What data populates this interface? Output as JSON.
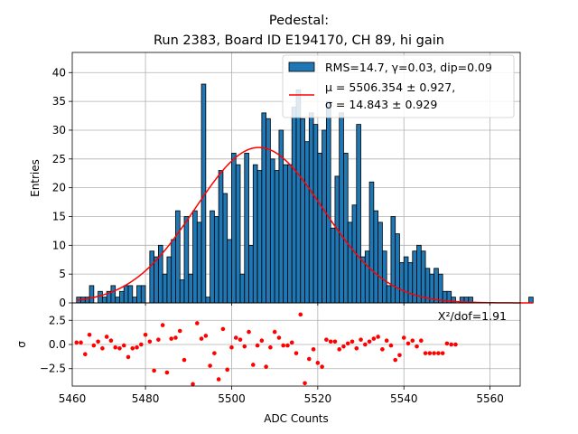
{
  "chart_data": {
    "type": "bar",
    "title_line1": "Pedestal:",
    "title_line2": "Run 2383, Board ID E194170, CH 89, hi gain",
    "xlabel": "ADC Counts",
    "ylabel": "Entries",
    "residual_ylabel": "σ",
    "xlim": [
      5463,
      5567
    ],
    "ylim": [
      0,
      43.5
    ],
    "residual_ylim": [
      -4.3,
      4.3
    ],
    "xticks": [
      5460,
      5480,
      5500,
      5520,
      5540,
      5560
    ],
    "yticks": [
      0,
      5,
      10,
      15,
      20,
      25,
      30,
      35,
      40
    ],
    "residual_yticks": [
      -2.5,
      0.0,
      2.5
    ],
    "residual_ytick_labels": [
      "−2.5",
      "0.0",
      "2.5"
    ],
    "grid": true,
    "legend_position": "top-right",
    "legend_hist": "RMS=14.7, γ=0.03, dip=0.09",
    "legend_fit_line1": "μ = 5506.354 ± 0.927,",
    "legend_fit_line2": "σ = 14.843 ± 0.929",
    "chi2_label": "X²/dof=1.91",
    "bar_color": "#1f77b4",
    "fit_color": "#ff0000",
    "residual_color": "#ff0000",
    "bin_width": 1,
    "bins_start": 5464,
    "histogram": [
      1,
      1,
      1,
      3,
      0,
      2,
      1,
      2,
      3,
      1,
      2,
      3,
      3,
      1,
      3,
      3,
      0,
      9,
      8,
      10,
      5,
      8,
      11,
      16,
      4,
      15,
      5,
      16,
      14,
      38,
      1,
      16,
      15,
      23,
      19,
      11,
      26,
      24,
      5,
      26,
      10,
      24,
      23,
      33,
      32,
      25,
      23,
      30,
      24,
      24,
      34,
      37,
      32,
      28,
      33,
      31,
      26,
      30,
      35,
      13,
      22,
      33,
      26,
      14,
      17,
      31,
      8,
      9,
      21,
      16,
      14,
      9,
      3,
      15,
      12,
      7,
      8,
      7,
      9,
      10,
      9,
      6,
      5,
      6,
      5,
      2,
      2,
      1,
      0,
      1,
      1,
      1,
      0,
      0,
      0,
      0,
      0,
      0,
      0,
      0,
      0,
      0,
      0,
      0,
      0,
      1
    ],
    "fit": {
      "mu": 5506.354,
      "sigma": 14.843,
      "amplitude": 27.0
    },
    "residuals_x": [
      5464,
      5465,
      5466,
      5467,
      5468,
      5469,
      5470,
      5471,
      5472,
      5473,
      5474,
      5475,
      5476,
      5477,
      5478,
      5479,
      5480,
      5481,
      5482,
      5483,
      5484,
      5485,
      5486,
      5487,
      5488,
      5489,
      5490,
      5491,
      5492,
      5493,
      5494,
      5495,
      5496,
      5497,
      5498,
      5499,
      5500,
      5501,
      5502,
      5503,
      5504,
      5505,
      5506,
      5507,
      5508,
      5509,
      5510,
      5511,
      5512,
      5513,
      5514,
      5515,
      5516,
      5517,
      5518,
      5519,
      5520,
      5521,
      5522,
      5523,
      5524,
      5525,
      5526,
      5527,
      5528,
      5529,
      5530,
      5531,
      5532,
      5533,
      5534,
      5535,
      5536,
      5537,
      5538,
      5539,
      5540,
      5541,
      5542,
      5543,
      5544,
      5545,
      5546,
      5547,
      5548,
      5549,
      5550,
      5551,
      5552
    ],
    "residuals_y": [
      0.2,
      0.2,
      -1.0,
      1.0,
      -0.1,
      0.3,
      -0.4,
      0.8,
      0.4,
      -0.3,
      -0.4,
      -0.1,
      -1.3,
      -0.4,
      -0.3,
      0.0,
      1.0,
      0.3,
      -2.7,
      0.5,
      2.0,
      -2.9,
      0.6,
      0.7,
      1.4,
      -1.6,
      6.2,
      -4.1,
      2.2,
      0.6,
      0.9,
      -2.2,
      -0.9,
      -3.6,
      1.6,
      -2.6,
      -0.3,
      0.7,
      0.5,
      -0.2,
      1.3,
      -2.1,
      -0.1,
      0.4,
      -2.3,
      -0.3,
      1.3,
      0.7,
      -0.1,
      -0.1,
      0.2,
      -0.9,
      3.1,
      -4.0,
      -1.5,
      -0.5,
      -1.9,
      -2.3,
      0.5,
      0.3,
      0.3,
      -0.5,
      -0.2,
      0.1,
      0.3,
      -0.4,
      0.5,
      0.0,
      0.3,
      0.6,
      0.8,
      -0.5,
      0.4,
      -0.1,
      -1.6,
      -1.1,
      0.7,
      0.1,
      0.4,
      -0.2,
      0.4,
      -0.9,
      -0.9,
      -0.9,
      -0.9,
      -0.9,
      0.1,
      0,
      0
    ]
  }
}
